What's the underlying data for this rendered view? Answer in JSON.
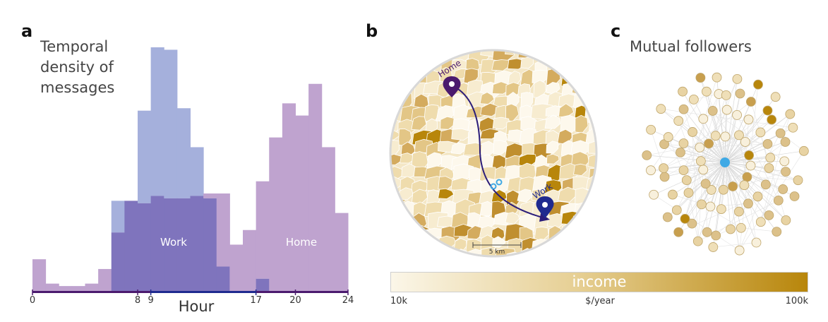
{
  "panel_a": {
    "letter": "a",
    "title_lines": [
      "Temporal",
      "density of",
      "messages"
    ]
  },
  "panel_b": {
    "letter": "b",
    "home_label": "Home",
    "work_label": "Work",
    "scale_label": "5 km",
    "colorbar": {
      "label": "income",
      "min_label": "10k",
      "unit_label": "$/year",
      "max_label": "100k",
      "min_color": "#fbf6e8",
      "max_color": "#b8860b"
    }
  },
  "panel_c": {
    "letter": "c",
    "title": "Mutual followers"
  },
  "colors": {
    "home": "#bfa3cf",
    "work": "#a5b0dc",
    "overlap": "#7f74bd",
    "home_axis": "#4b1a6e",
    "work_axis": "#1f2a8f",
    "center_node": "#3fa9e5"
  },
  "chart_data": {
    "type": "bar",
    "xlabel": "Hour",
    "ylabel": "",
    "xlim": [
      0,
      24
    ],
    "ylim": [
      0,
      1
    ],
    "x_ticks": [
      0,
      8,
      9,
      17,
      20,
      24
    ],
    "work_interval": [
      9,
      17
    ],
    "bin_hours": [
      0,
      1,
      2,
      3,
      4,
      5,
      6,
      7,
      8,
      9,
      10,
      11,
      12,
      13,
      14,
      15,
      16,
      17,
      18,
      19,
      20,
      21,
      22,
      23
    ],
    "series": [
      {
        "name": "Home",
        "values": [
          0.13,
          0.03,
          0.02,
          0.02,
          0.03,
          0.09,
          0.24,
          0.37,
          0.36,
          0.39,
          0.38,
          0.38,
          0.39,
          0.4,
          0.4,
          0.19,
          0.25,
          0.45,
          0.63,
          0.77,
          0.72,
          0.85,
          0.59,
          0.32
        ]
      },
      {
        "name": "Work",
        "values": [
          0,
          0,
          0,
          0,
          0,
          0,
          0.37,
          0.37,
          0.74,
          1.0,
          0.99,
          0.75,
          0.59,
          0.38,
          0.1,
          0,
          0,
          0.05,
          0,
          0,
          0,
          0,
          0,
          0
        ]
      }
    ],
    "bar_labels": [
      "Work",
      "Home"
    ]
  }
}
